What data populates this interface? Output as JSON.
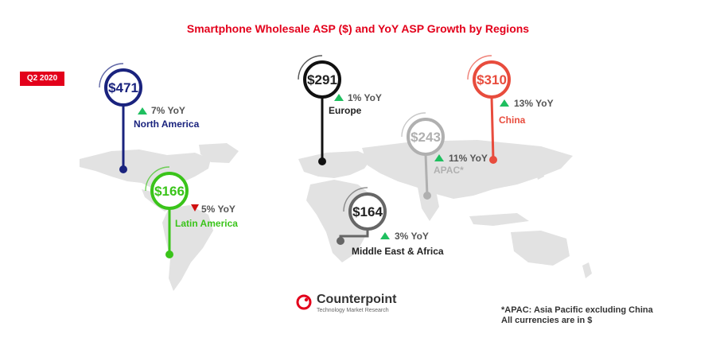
{
  "title": "Smartphone Wholesale ASP ($) and YoY ASP Growth by Regions",
  "period_badge": "Q2 2020",
  "notes": {
    "line1": "*APAC: Asia Pacific excluding China",
    "line2": "All currencies are in $"
  },
  "brand": {
    "name": "Counterpoint",
    "tagline": "Technology Market Research",
    "color": "#e3001b"
  },
  "chart_data": {
    "type": "table",
    "title": "Smartphone Wholesale ASP ($) and YoY ASP Growth by Regions",
    "period": "Q2 2020",
    "regions": [
      {
        "name": "North America",
        "asp": "$471",
        "asp_value": 471,
        "yoy": "7% YoY",
        "yoy_value": 7,
        "direction": "up",
        "color": "#1a237e"
      },
      {
        "name": "Europe",
        "asp": "$291",
        "asp_value": 291,
        "yoy": "1% YoY",
        "yoy_value": 1,
        "direction": "up",
        "color": "#111111"
      },
      {
        "name": "China",
        "asp": "$310",
        "asp_value": 310,
        "yoy": "13% YoY",
        "yoy_value": 13,
        "direction": "up",
        "color": "#e84c3d"
      },
      {
        "name": "APAC*",
        "asp": "$243",
        "asp_value": 243,
        "yoy": "11% YoY",
        "yoy_value": 11,
        "direction": "up",
        "color": "#b0b0b0"
      },
      {
        "name": "Latin America",
        "asp": "$166",
        "asp_value": 166,
        "yoy": "5% YoY",
        "yoy_value": -5,
        "direction": "down",
        "color": "#3ac41a"
      },
      {
        "name": "Middle East & Africa",
        "asp": "$164",
        "asp_value": 164,
        "yoy": "3% YoY",
        "yoy_value": 3,
        "direction": "up",
        "color": "#666666"
      }
    ],
    "up_color": "#1fbf5f",
    "down_color": "#d01010"
  }
}
